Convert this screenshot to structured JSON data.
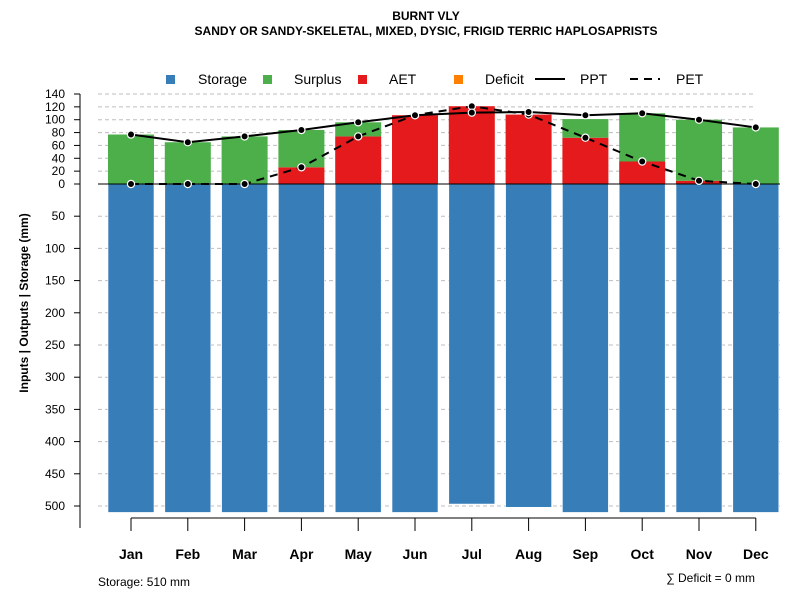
{
  "chart_data": {
    "type": "bar",
    "title": "BURNT VLY",
    "subtitle": "SANDY OR SANDY-SKELETAL, MIXED, DYSIC, FRIGID TERRIC HAPLOSAPRISTS",
    "ylabel": "Inputs | Outputs | Storage    (mm)",
    "categories": [
      "Jan",
      "Feb",
      "Mar",
      "Apr",
      "May",
      "Jun",
      "Jul",
      "Aug",
      "Sep",
      "Oct",
      "Nov",
      "Dec"
    ],
    "upper_ticks": [
      140,
      120,
      100,
      80,
      60,
      40,
      20,
      0
    ],
    "lower_ticks": [
      50,
      100,
      150,
      200,
      250,
      300,
      350,
      400,
      450,
      500
    ],
    "upper_ylim": [
      0,
      140
    ],
    "lower_ylim": [
      0,
      510
    ],
    "legend": [
      {
        "label": "Storage",
        "kind": "box",
        "color": "#377EB8"
      },
      {
        "label": "Surplus",
        "kind": "box",
        "color": "#4DAF4A"
      },
      {
        "label": "AET",
        "kind": "box",
        "color": "#E41A1C"
      },
      {
        "label": "Deficit",
        "kind": "box",
        "color": "#FF7F00"
      },
      {
        "label": "PPT",
        "kind": "solid-line",
        "color": "#000000"
      },
      {
        "label": "PET",
        "kind": "dashed-line",
        "color": "#000000"
      }
    ],
    "series": [
      {
        "name": "Storage",
        "color": "#377EB8",
        "values": [
          510,
          510,
          510,
          510,
          510,
          510,
          497,
          502,
          510,
          510,
          510,
          510
        ]
      },
      {
        "name": "AET",
        "color": "#E41A1C",
        "values": [
          0,
          0,
          0,
          26,
          74,
          107,
          121,
          108,
          72,
          35,
          5,
          0
        ]
      },
      {
        "name": "Surplus",
        "color": "#4DAF4A",
        "values": [
          77,
          65,
          74,
          58,
          22,
          0,
          0,
          0,
          29,
          75,
          95,
          88
        ]
      },
      {
        "name": "Deficit",
        "color": "#FF7F00",
        "values": [
          0,
          0,
          0,
          0,
          0,
          0,
          0,
          0,
          0,
          0,
          0,
          0
        ]
      },
      {
        "name": "PPT",
        "color": "#000000",
        "values": [
          77,
          65,
          74,
          84,
          96,
          107,
          111,
          112,
          107,
          110,
          100,
          88
        ]
      },
      {
        "name": "PET",
        "color": "#000000",
        "values": [
          0,
          0,
          0,
          26,
          74,
          107,
          121,
          108,
          72,
          35,
          5,
          0
        ]
      }
    ],
    "grid": true
  },
  "footer": {
    "storage_label": "Storage: 510 mm",
    "deficit_label": "∑ Deficit = 0 mm"
  }
}
